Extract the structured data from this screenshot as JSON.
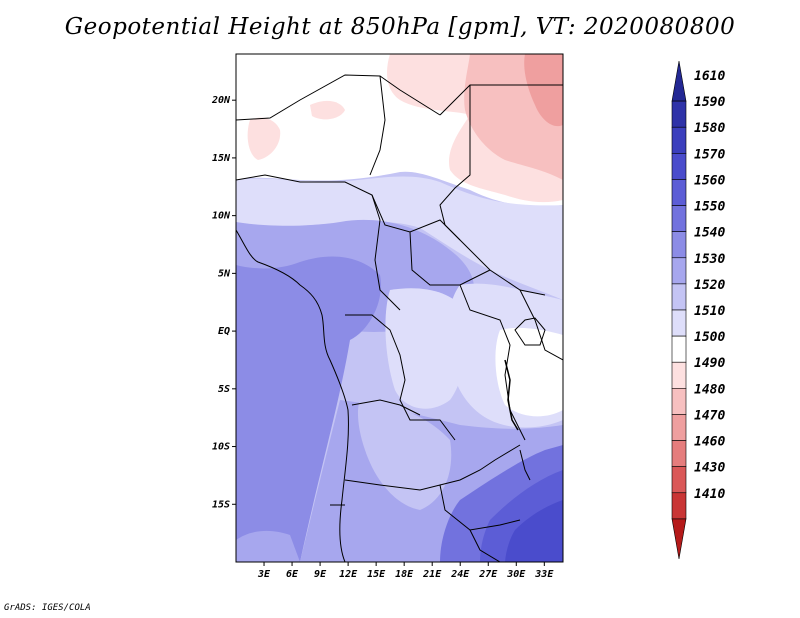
{
  "title": "Geopotential Height at 850hPa [gpm], VT: 2020080800",
  "footer": "GrADS: IGES/COLA",
  "map": {
    "region": "Central and Southern Africa",
    "lon_range": [
      0,
      35
    ],
    "lat_range": [
      -20,
      24
    ],
    "lon_ticks": [
      "3E",
      "6E",
      "9E",
      "12E",
      "15E",
      "18E",
      "21E",
      "24E",
      "27E",
      "30E",
      "33E"
    ],
    "lat_ticks": [
      "20N",
      "15N",
      "10N",
      "5N",
      "EQ",
      "5S",
      "10S",
      "15S"
    ],
    "coastline_color": "#000000"
  },
  "colorbar": {
    "levels": [
      "1610",
      "1590",
      "1580",
      "1570",
      "1560",
      "1550",
      "1540",
      "1530",
      "1520",
      "1510",
      "1500",
      "1490",
      "1480",
      "1470",
      "1460",
      "1430",
      "1410"
    ],
    "colors_top_to_bottom": [
      "#232894",
      "#2e32a8",
      "#3b3fbd",
      "#4a4ccc",
      "#5c5dd6",
      "#7272de",
      "#8c8ce6",
      "#a7a7ee",
      "#c4c4f4",
      "#dedefa",
      "#ffffff",
      "#fde0e0",
      "#f7c0c0",
      "#ef9f9f",
      "#e57d7d",
      "#da5858",
      "#c93535",
      "#b51a1a"
    ]
  }
}
